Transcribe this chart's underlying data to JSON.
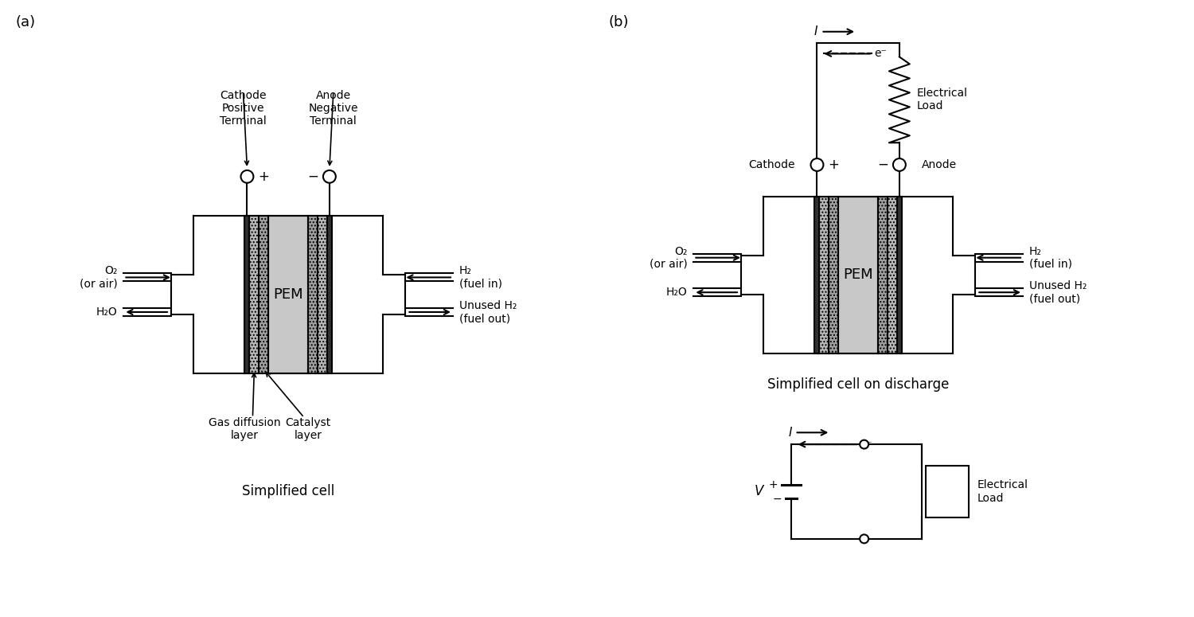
{
  "bg_color": "#ffffff",
  "line_color": "#000000",
  "pem_fill": "#c8c8c8",
  "panel_a_label": "(a)",
  "panel_b_label": "(b)",
  "simplified_cell_label": "Simplified cell",
  "simplified_cell_discharge_label": "Simplified cell on discharge",
  "pem_label": "PEM",
  "o2_label": "O₂\n(or air)",
  "h2_label": "H₂\n(fuel in)",
  "h2o_label": "H₂O",
  "unused_h2_label": "Unused H₂\n(fuel out)",
  "gas_diffusion_label": "Gas diffusion\nlayer",
  "catalyst_label": "Catalyst\nlayer",
  "electrical_load_label": "Electrical\nLoad",
  "I_label": "I",
  "eminus_label": "e⁻",
  "V_label": "V",
  "plus_label": "+",
  "minus_label": "−"
}
